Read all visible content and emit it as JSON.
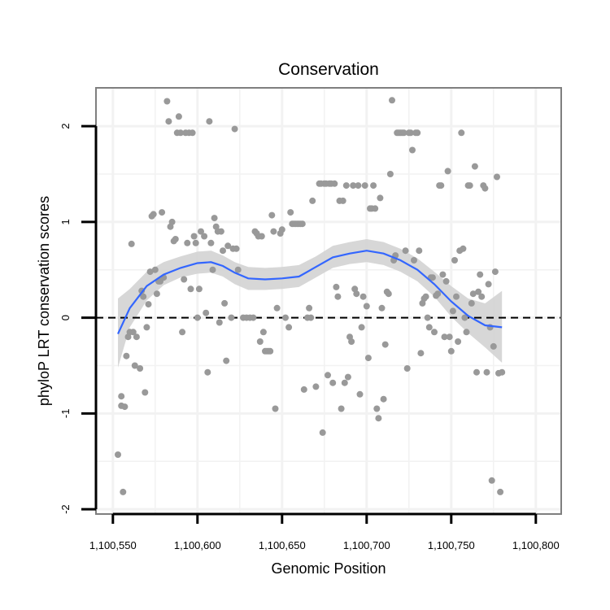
{
  "chart_data": {
    "type": "scatter",
    "title": "Conservation",
    "xlabel": "Genomic Position",
    "ylabel": "phyloP LRT conservation scores",
    "xlim": [
      1100540,
      1100815
    ],
    "ylim": [
      -2.05,
      2.4
    ],
    "x_ticks": [
      1100550,
      1100600,
      1100650,
      1100700,
      1100750,
      1100800
    ],
    "x_tick_labels": [
      "1,100,550",
      "1,100,600",
      "1,100,650",
      "1,100,700",
      "1,100,750",
      "1,100,800"
    ],
    "y_ticks": [
      -2,
      -1,
      0,
      1,
      2
    ],
    "y_tick_labels": [
      "-2",
      "-1",
      "0",
      "1",
      "2"
    ],
    "grid": true,
    "reference_line": {
      "y": 0,
      "style": "dashed"
    },
    "colors": {
      "points": "#999999",
      "smooth_line": "#3366FF",
      "confidence_band": "#D3D3D3",
      "grid": "#F2F2F2",
      "frame": "#7F7F7F"
    },
    "series": [
      {
        "name": "phyloP scores",
        "kind": "points",
        "points": [
          [
            1100553,
            -1.43
          ],
          [
            1100555,
            -0.92
          ],
          [
            1100555,
            -0.82
          ],
          [
            1100556,
            -1.82
          ],
          [
            1100557,
            -0.93
          ],
          [
            1100558,
            -0.4
          ],
          [
            1100559,
            -0.2
          ],
          [
            1100560,
            -0.15
          ],
          [
            1100561,
            0.77
          ],
          [
            1100562,
            -0.15
          ],
          [
            1100563,
            -0.5
          ],
          [
            1100564,
            -0.2
          ],
          [
            1100566,
            -0.53
          ],
          [
            1100567,
            0.28
          ],
          [
            1100568,
            0.22
          ],
          [
            1100569,
            -0.78
          ],
          [
            1100570,
            -0.1
          ],
          [
            1100571,
            0.14
          ],
          [
            1100572,
            0.48
          ],
          [
            1100573,
            1.06
          ],
          [
            1100574,
            1.08
          ],
          [
            1100575,
            0.5
          ],
          [
            1100576,
            0.25
          ],
          [
            1100577,
            0.38
          ],
          [
            1100578,
            0.38
          ],
          [
            1100579,
            1.1
          ],
          [
            1100580,
            0.42
          ],
          [
            1100582,
            2.26
          ],
          [
            1100583,
            2.05
          ],
          [
            1100584,
            0.95
          ],
          [
            1100585,
            1.0
          ],
          [
            1100586,
            0.8
          ],
          [
            1100587,
            0.82
          ],
          [
            1100588,
            1.93
          ],
          [
            1100589,
            2.1
          ],
          [
            1100590,
            1.93
          ],
          [
            1100591,
            -0.15
          ],
          [
            1100592,
            0.4
          ],
          [
            1100593,
            1.93
          ],
          [
            1100594,
            0.78
          ],
          [
            1100595,
            1.93
          ],
          [
            1100596,
            0.3
          ],
          [
            1100597,
            1.93
          ],
          [
            1100598,
            0.85
          ],
          [
            1100599,
            0.78
          ],
          [
            1100600,
            0.0
          ],
          [
            1100601,
            0.3
          ],
          [
            1100602,
            0.9
          ],
          [
            1100604,
            0.85
          ],
          [
            1100605,
            0.05
          ],
          [
            1100606,
            -0.57
          ],
          [
            1100607,
            2.05
          ],
          [
            1100608,
            0.78
          ],
          [
            1100609,
            0.5
          ],
          [
            1100610,
            1.04
          ],
          [
            1100611,
            0.95
          ],
          [
            1100612,
            0.9
          ],
          [
            1100613,
            -0.05
          ],
          [
            1100614,
            0.9
          ],
          [
            1100615,
            0.7
          ],
          [
            1100616,
            0.15
          ],
          [
            1100617,
            -0.45
          ],
          [
            1100618,
            0.75
          ],
          [
            1100620,
            0.0
          ],
          [
            1100621,
            0.72
          ],
          [
            1100622,
            1.97
          ],
          [
            1100623,
            0.72
          ],
          [
            1100624,
            0.5
          ],
          [
            1100627,
            0.0
          ],
          [
            1100629,
            0.0
          ],
          [
            1100631,
            0.0
          ],
          [
            1100633,
            0.0
          ],
          [
            1100634,
            0.9
          ],
          [
            1100635,
            0.88
          ],
          [
            1100636,
            0.85
          ],
          [
            1100637,
            -0.25
          ],
          [
            1100638,
            0.85
          ],
          [
            1100639,
            -0.15
          ],
          [
            1100640,
            -0.35
          ],
          [
            1100641,
            -0.35
          ],
          [
            1100642,
            -0.35
          ],
          [
            1100643,
            -0.35
          ],
          [
            1100644,
            1.07
          ],
          [
            1100645,
            0.9
          ],
          [
            1100646,
            -0.95
          ],
          [
            1100647,
            0.1
          ],
          [
            1100649,
            0.88
          ],
          [
            1100650,
            0.92
          ],
          [
            1100652,
            0.0
          ],
          [
            1100654,
            -0.1
          ],
          [
            1100655,
            1.1
          ],
          [
            1100656,
            0.98
          ],
          [
            1100657,
            0.98
          ],
          [
            1100658,
            0.98
          ],
          [
            1100659,
            0.98
          ],
          [
            1100660,
            0.98
          ],
          [
            1100661,
            0.98
          ],
          [
            1100662,
            0.98
          ],
          [
            1100663,
            -0.75
          ],
          [
            1100665,
            0.0
          ],
          [
            1100666,
            0.1
          ],
          [
            1100667,
            0.0
          ],
          [
            1100668,
            1.22
          ],
          [
            1100670,
            -0.72
          ],
          [
            1100672,
            1.4
          ],
          [
            1100673,
            1.4
          ],
          [
            1100674,
            -1.2
          ],
          [
            1100675,
            1.4
          ],
          [
            1100676,
            1.4
          ],
          [
            1100677,
            -0.6
          ],
          [
            1100678,
            1.4
          ],
          [
            1100679,
            1.4
          ],
          [
            1100680,
            -0.68
          ],
          [
            1100681,
            1.4
          ],
          [
            1100682,
            0.32
          ],
          [
            1100683,
            0.22
          ],
          [
            1100684,
            1.22
          ],
          [
            1100685,
            -0.95
          ],
          [
            1100686,
            1.22
          ],
          [
            1100687,
            -0.68
          ],
          [
            1100688,
            1.38
          ],
          [
            1100689,
            -0.62
          ],
          [
            1100690,
            -0.2
          ],
          [
            1100691,
            -0.25
          ],
          [
            1100692,
            1.38
          ],
          [
            1100693,
            0.3
          ],
          [
            1100694,
            0.25
          ],
          [
            1100695,
            1.38
          ],
          [
            1100696,
            -0.8
          ],
          [
            1100697,
            -0.1
          ],
          [
            1100698,
            0.22
          ],
          [
            1100699,
            1.38
          ],
          [
            1100700,
            0.12
          ],
          [
            1100701,
            -0.42
          ],
          [
            1100702,
            1.14
          ],
          [
            1100703,
            1.14
          ],
          [
            1100704,
            1.38
          ],
          [
            1100705,
            1.14
          ],
          [
            1100706,
            -0.95
          ],
          [
            1100707,
            -1.05
          ],
          [
            1100708,
            1.25
          ],
          [
            1100709,
            0.1
          ],
          [
            1100710,
            -0.85
          ],
          [
            1100711,
            -0.28
          ],
          [
            1100712,
            0.27
          ],
          [
            1100713,
            0.25
          ],
          [
            1100714,
            1.5
          ],
          [
            1100715,
            2.27
          ],
          [
            1100716,
            0.6
          ],
          [
            1100717,
            0.65
          ],
          [
            1100718,
            1.93
          ],
          [
            1100719,
            1.93
          ],
          [
            1100720,
            1.93
          ],
          [
            1100721,
            1.93
          ],
          [
            1100722,
            1.93
          ],
          [
            1100723,
            0.7
          ],
          [
            1100724,
            -0.53
          ],
          [
            1100725,
            1.93
          ],
          [
            1100726,
            1.93
          ],
          [
            1100727,
            1.75
          ],
          [
            1100728,
            0.6
          ],
          [
            1100729,
            1.93
          ],
          [
            1100730,
            1.93
          ],
          [
            1100731,
            0.7
          ],
          [
            1100732,
            -0.37
          ],
          [
            1100733,
            0.15
          ],
          [
            1100734,
            0.2
          ],
          [
            1100735,
            0.22
          ],
          [
            1100736,
            0.0
          ],
          [
            1100737,
            -0.1
          ],
          [
            1100738,
            0.42
          ],
          [
            1100739,
            0.42
          ],
          [
            1100740,
            -0.15
          ],
          [
            1100741,
            0.23
          ],
          [
            1100742,
            0.25
          ],
          [
            1100743,
            1.38
          ],
          [
            1100744,
            1.38
          ],
          [
            1100745,
            0.45
          ],
          [
            1100746,
            -0.2
          ],
          [
            1100747,
            0.38
          ],
          [
            1100748,
            1.53
          ],
          [
            1100749,
            -0.2
          ],
          [
            1100750,
            -0.35
          ],
          [
            1100751,
            0.07
          ],
          [
            1100752,
            0.6
          ],
          [
            1100753,
            0.22
          ],
          [
            1100754,
            -0.25
          ],
          [
            1100755,
            0.7
          ],
          [
            1100756,
            1.93
          ],
          [
            1100757,
            0.72
          ],
          [
            1100758,
            0.0
          ],
          [
            1100759,
            -0.15
          ],
          [
            1100760,
            1.38
          ],
          [
            1100761,
            1.38
          ],
          [
            1100762,
            0.15
          ],
          [
            1100763,
            0.25
          ],
          [
            1100764,
            1.58
          ],
          [
            1100765,
            -0.57
          ],
          [
            1100766,
            0.27
          ],
          [
            1100767,
            0.45
          ],
          [
            1100768,
            0.22
          ],
          [
            1100769,
            1.38
          ],
          [
            1100770,
            1.35
          ],
          [
            1100771,
            -0.57
          ],
          [
            1100772,
            0.35
          ],
          [
            1100773,
            -0.1
          ],
          [
            1100774,
            -1.7
          ],
          [
            1100775,
            -0.3
          ],
          [
            1100776,
            0.48
          ],
          [
            1100777,
            1.47
          ],
          [
            1100778,
            -0.58
          ],
          [
            1100779,
            -1.82
          ],
          [
            1100780,
            -0.57
          ]
        ]
      },
      {
        "name": "loess fit",
        "kind": "line",
        "points": [
          [
            1100553,
            -0.17
          ],
          [
            1100560,
            0.1
          ],
          [
            1100570,
            0.33
          ],
          [
            1100580,
            0.45
          ],
          [
            1100590,
            0.52
          ],
          [
            1100600,
            0.57
          ],
          [
            1100608,
            0.58
          ],
          [
            1100615,
            0.54
          ],
          [
            1100622,
            0.47
          ],
          [
            1100630,
            0.41
          ],
          [
            1100640,
            0.4
          ],
          [
            1100650,
            0.41
          ],
          [
            1100660,
            0.43
          ],
          [
            1100670,
            0.53
          ],
          [
            1100680,
            0.63
          ],
          [
            1100690,
            0.67
          ],
          [
            1100700,
            0.7
          ],
          [
            1100710,
            0.67
          ],
          [
            1100720,
            0.6
          ],
          [
            1100730,
            0.5
          ],
          [
            1100740,
            0.35
          ],
          [
            1100750,
            0.17
          ],
          [
            1100760,
            0.02
          ],
          [
            1100770,
            -0.08
          ],
          [
            1100780,
            -0.1
          ]
        ]
      },
      {
        "name": "confidence band",
        "kind": "band",
        "points": [
          [
            1100553,
            -0.52,
            0.2
          ],
          [
            1100560,
            -0.1,
            0.3
          ],
          [
            1100570,
            0.18,
            0.48
          ],
          [
            1100580,
            0.34,
            0.58
          ],
          [
            1100590,
            0.42,
            0.64
          ],
          [
            1100600,
            0.46,
            0.69
          ],
          [
            1100608,
            0.47,
            0.7
          ],
          [
            1100615,
            0.43,
            0.65
          ],
          [
            1100622,
            0.35,
            0.58
          ],
          [
            1100630,
            0.29,
            0.53
          ],
          [
            1100640,
            0.29,
            0.52
          ],
          [
            1100650,
            0.3,
            0.53
          ],
          [
            1100660,
            0.32,
            0.55
          ],
          [
            1100670,
            0.42,
            0.64
          ],
          [
            1100680,
            0.52,
            0.75
          ],
          [
            1100690,
            0.56,
            0.79
          ],
          [
            1100700,
            0.58,
            0.82
          ],
          [
            1100710,
            0.55,
            0.79
          ],
          [
            1100720,
            0.48,
            0.72
          ],
          [
            1100730,
            0.38,
            0.62
          ],
          [
            1100740,
            0.22,
            0.48
          ],
          [
            1100750,
            0.01,
            0.33
          ],
          [
            1100760,
            -0.16,
            0.2
          ],
          [
            1100770,
            -0.31,
            0.15
          ],
          [
            1100780,
            -0.47,
            0.28
          ]
        ]
      }
    ]
  }
}
